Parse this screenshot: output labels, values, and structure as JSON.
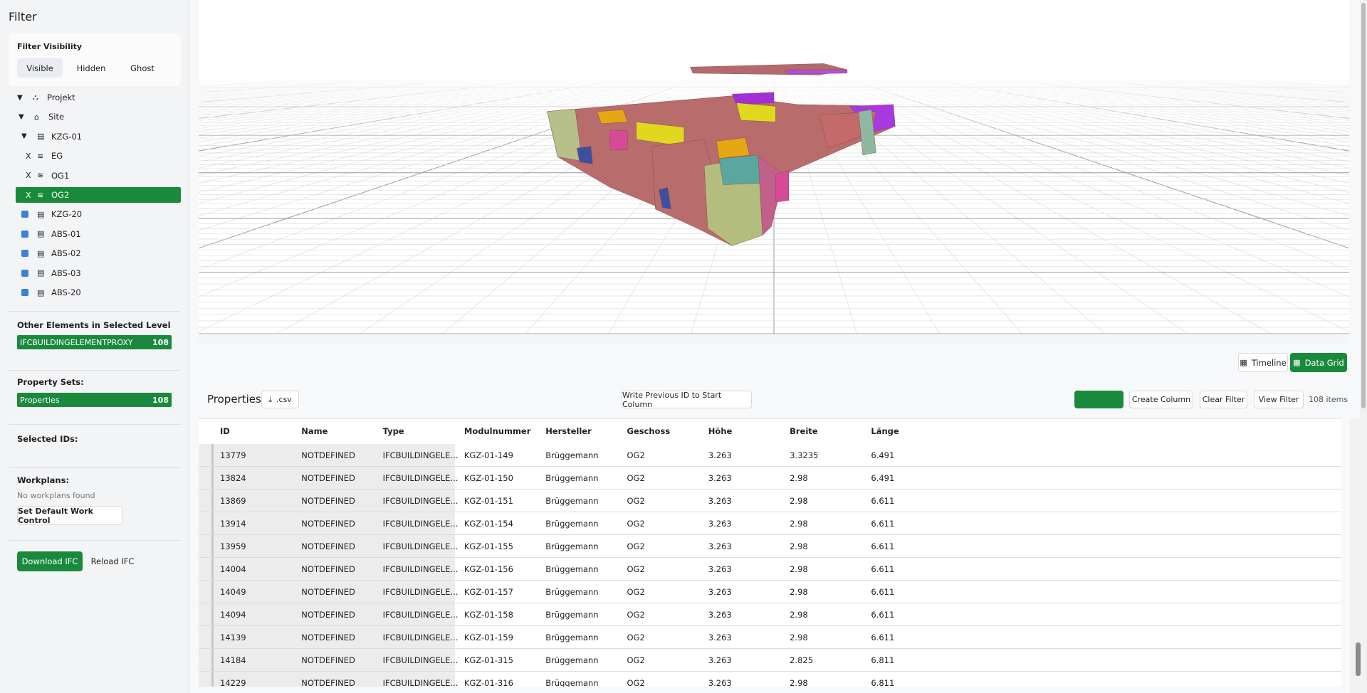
{
  "sidebar": {
    "title": "Filter",
    "visibility": {
      "label": "Filter Visibility",
      "options": [
        "Visible",
        "Hidden",
        "Ghost"
      ]
    },
    "tree": [
      {
        "label": "Projekt"
      },
      {
        "label": "Site"
      },
      {
        "label": "KZG-01"
      },
      {
        "marker": "X",
        "label": "EG"
      },
      {
        "marker": "X",
        "label": "OG1"
      },
      {
        "marker": "X",
        "label": "OG2"
      },
      {
        "label": "KZG-20"
      },
      {
        "label": "ABS-01"
      },
      {
        "label": "ABS-02"
      },
      {
        "label": "ABS-03"
      },
      {
        "label": "ABS-20"
      }
    ],
    "other_elements": {
      "heading": "Other Elements in Selected Level",
      "items": [
        {
          "label": "IFCBUILDINGELEMENTPROXY",
          "count": 108
        }
      ]
    },
    "property_sets": {
      "heading": "Property Sets:",
      "items": [
        {
          "label": "Properties",
          "count": 108
        }
      ]
    },
    "selected_ids": {
      "heading": "Selected IDs:"
    },
    "workplans": {
      "heading": "Workplans:",
      "empty": "No workplans found",
      "button": "Set Default Work Control"
    },
    "actions": [
      "Download IFC",
      "Reload IFC"
    ]
  },
  "view_toggle": [
    "Timeline",
    "Data Grid"
  ],
  "grid": {
    "title": "Properties",
    "export": ".csv",
    "buttons": [
      "Write Previous ID to Start Column",
      "Create Column",
      "Clear Filter",
      "View Filter"
    ],
    "count": "108 items",
    "columns": [
      "ID",
      "Name",
      "Type",
      "Modulnummer",
      "Hersteller",
      "Geschoss",
      "Höhe",
      "Breite",
      "Länge"
    ],
    "rows": [
      [
        "13779",
        "NOTDEFINED",
        "IFCBUILDINGELE...",
        "KGZ-01-149",
        "Brüggemann",
        "OG2",
        "3.263",
        "3.3235",
        "6.491"
      ],
      [
        "13824",
        "NOTDEFINED",
        "IFCBUILDINGELE...",
        "KGZ-01-150",
        "Brüggemann",
        "OG2",
        "3.263",
        "2.98",
        "6.491"
      ],
      [
        "13869",
        "NOTDEFINED",
        "IFCBUILDINGELE...",
        "KGZ-01-151",
        "Brüggemann",
        "OG2",
        "3.263",
        "2.98",
        "6.611"
      ],
      [
        "13914",
        "NOTDEFINED",
        "IFCBUILDINGELE...",
        "KGZ-01-154",
        "Brüggemann",
        "OG2",
        "3.263",
        "2.98",
        "6.611"
      ],
      [
        "13959",
        "NOTDEFINED",
        "IFCBUILDINGELE...",
        "KGZ-01-155",
        "Brüggemann",
        "OG2",
        "3.263",
        "2.98",
        "6.611"
      ],
      [
        "14004",
        "NOTDEFINED",
        "IFCBUILDINGELE...",
        "KGZ-01-156",
        "Brüggemann",
        "OG2",
        "3.263",
        "2.98",
        "6.611"
      ],
      [
        "14049",
        "NOTDEFINED",
        "IFCBUILDINGELE...",
        "KGZ-01-157",
        "Brüggemann",
        "OG2",
        "3.263",
        "2.98",
        "6.611"
      ],
      [
        "14094",
        "NOTDEFINED",
        "IFCBUILDINGELE...",
        "KGZ-01-158",
        "Brüggemann",
        "OG2",
        "3.263",
        "2.98",
        "6.611"
      ],
      [
        "14139",
        "NOTDEFINED",
        "IFCBUILDINGELE...",
        "KGZ-01-159",
        "Brüggemann",
        "OG2",
        "3.263",
        "2.98",
        "6.611"
      ],
      [
        "14184",
        "NOTDEFINED",
        "IFCBUILDINGELE...",
        "KGZ-01-315",
        "Brüggemann",
        "OG2",
        "3.263",
        "2.825",
        "6.811"
      ],
      [
        "14229",
        "NOTDEFINED",
        "IFCBUILDINGELE...",
        "KGZ-01-316",
        "Brüggemann",
        "OG2",
        "3.263",
        "2.98",
        "6.811"
      ]
    ]
  }
}
